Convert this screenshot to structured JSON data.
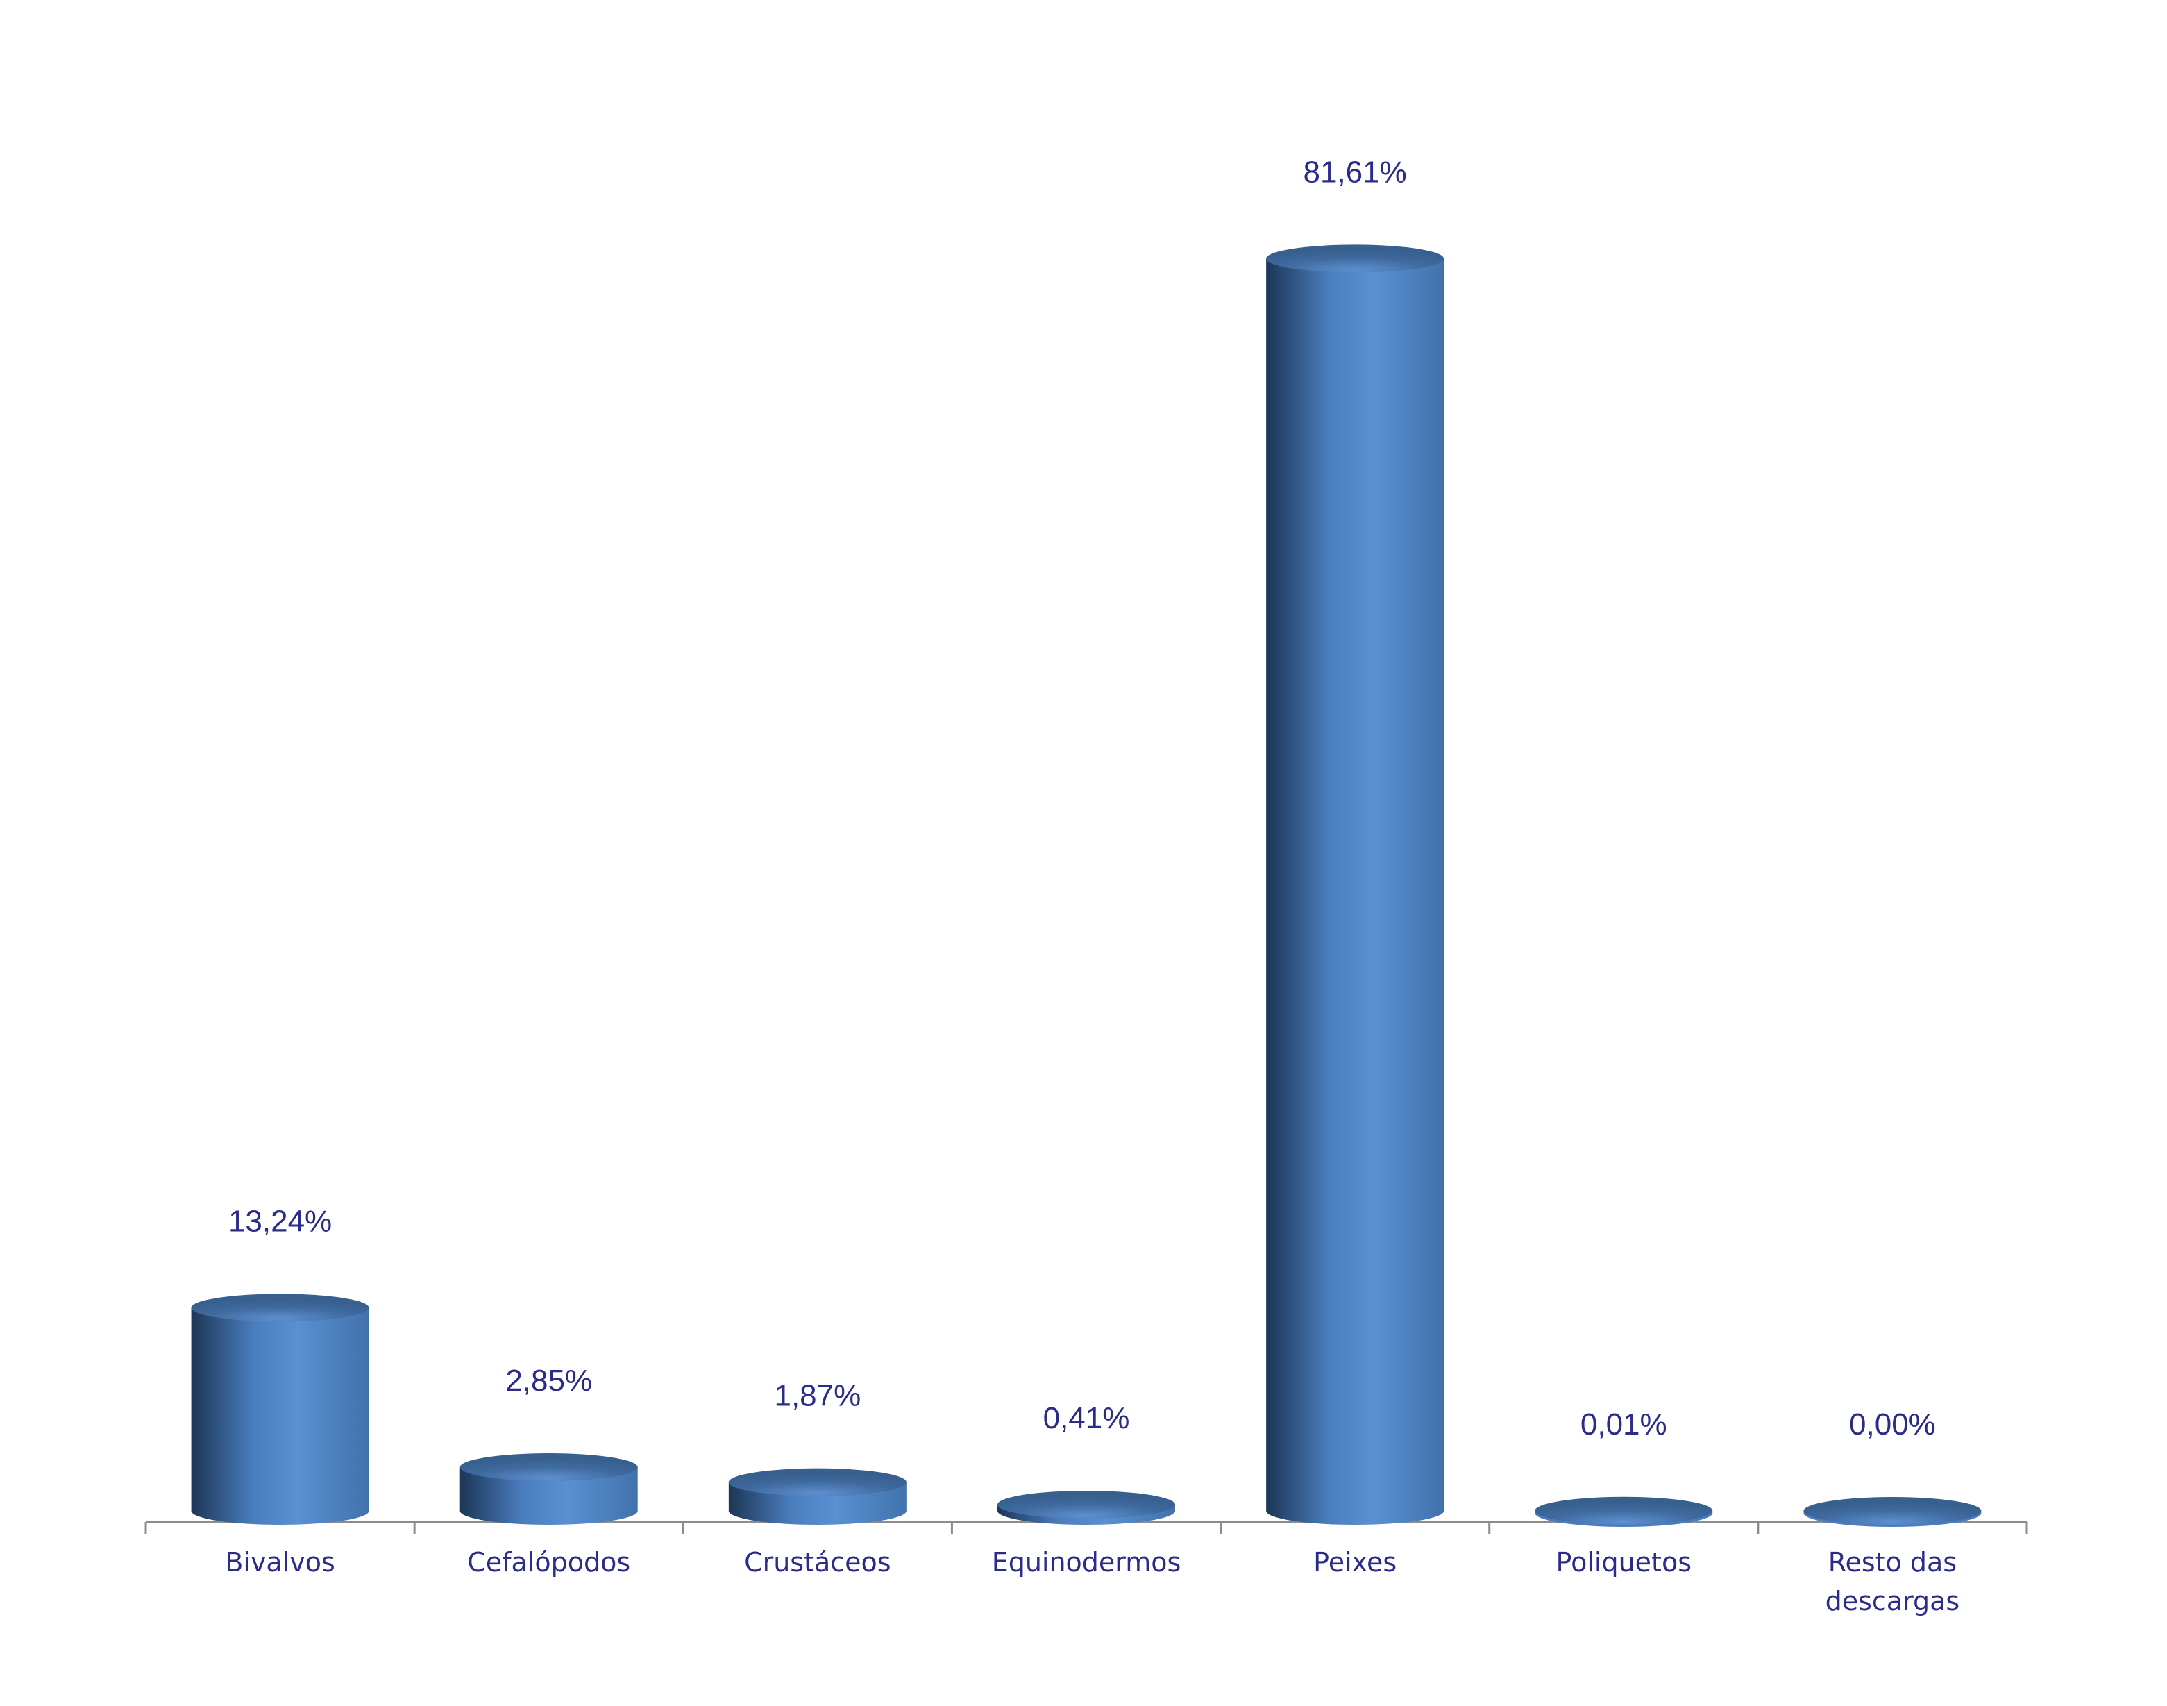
{
  "chart_data": {
    "type": "cylinder-bar",
    "categories": [
      "Bivalvos",
      "Cefalópodos",
      "Crustáceos",
      "Equinodermos",
      "Peixes",
      "Poliquetos",
      "Resto das descargas"
    ],
    "values": [
      13.24,
      2.85,
      1.87,
      0.41,
      81.61,
      0.01,
      0.0
    ],
    "value_labels": [
      "13,24%",
      "2,85%",
      "1,87%",
      "0,41%",
      "81,61%",
      "0,01%",
      "0,00%"
    ],
    "color": "#4f86c6"
  }
}
